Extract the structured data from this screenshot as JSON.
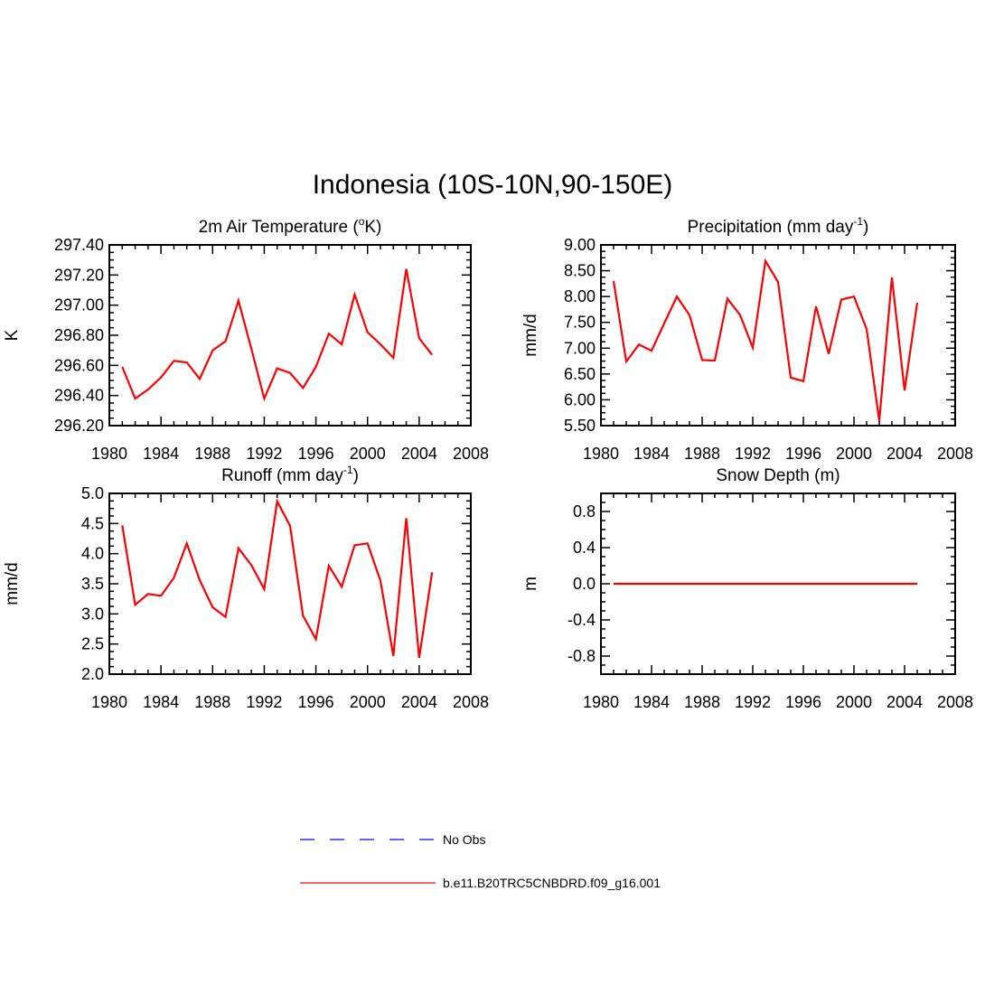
{
  "title": "Indonesia (10S-10N,90-150E)",
  "colors": {
    "model": "#ff0000",
    "obs": "#0000ff",
    "axis": "#000000"
  },
  "legend": [
    {
      "label": "No Obs",
      "style": "dashed",
      "color": "#0000ff"
    },
    {
      "label": "b.e11.B20TRC5CNBDRD.f09_g16.001",
      "style": "solid",
      "color": "#ff0000"
    }
  ],
  "chart_data": [
    {
      "type": "line",
      "title": "2m Air Temperature (",
      "title_sup": "o",
      "title_suffix": "K)",
      "xlabel": "",
      "ylabel": "K",
      "xlim": [
        1980,
        2008
      ],
      "ylim": [
        296.2,
        297.4
      ],
      "xticks": [
        "1980",
        "1984",
        "1988",
        "1992",
        "1996",
        "2000",
        "2004",
        "2008"
      ],
      "yticks": [
        "296.20",
        "296.40",
        "296.60",
        "296.80",
        "297.00",
        "297.20",
        "297.40"
      ],
      "ytick_values": [
        296.2,
        296.4,
        296.6,
        296.8,
        297.0,
        297.2,
        297.4
      ],
      "series": [
        {
          "name": "b.e11.B20TRC5CNBDRD.f09_g16.001",
          "x": [
            1981,
            1982,
            1983,
            1984,
            1985,
            1986,
            1987,
            1988,
            1989,
            1990,
            1991,
            1992,
            1993,
            1994,
            1995,
            1996,
            1997,
            1998,
            1999,
            2000,
            2001,
            2002,
            2003,
            2004,
            2005
          ],
          "values": [
            296.59,
            296.38,
            296.44,
            296.52,
            296.63,
            296.62,
            296.51,
            296.7,
            296.76,
            297.03,
            296.71,
            296.38,
            296.58,
            296.55,
            296.45,
            296.59,
            296.81,
            296.74,
            297.07,
            296.82,
            296.74,
            296.65,
            297.24,
            296.78,
            296.67
          ]
        }
      ]
    },
    {
      "type": "line",
      "title": "Precipitation (mm day",
      "title_sup": "-1",
      "title_suffix": ")",
      "xlabel": "",
      "ylabel": "mm/d",
      "xlim": [
        1980,
        2008
      ],
      "ylim": [
        5.5,
        9.0
      ],
      "xticks": [
        "1980",
        "1984",
        "1988",
        "1992",
        "1996",
        "2000",
        "2004",
        "2008"
      ],
      "yticks": [
        "5.50",
        "6.00",
        "6.50",
        "7.00",
        "7.50",
        "8.00",
        "8.50",
        "9.00"
      ],
      "ytick_values": [
        5.5,
        6.0,
        6.5,
        7.0,
        7.5,
        8.0,
        8.5,
        9.0
      ],
      "series": [
        {
          "name": "b.e11.B20TRC5CNBDRD.f09_g16.001",
          "x": [
            1981,
            1982,
            1983,
            1984,
            1985,
            1986,
            1987,
            1988,
            1989,
            1990,
            1991,
            1992,
            1993,
            1994,
            1995,
            1996,
            1997,
            1998,
            1999,
            2000,
            2001,
            2002,
            2003,
            2004,
            2005
          ],
          "values": [
            8.3,
            6.74,
            7.07,
            6.95,
            7.48,
            8.0,
            7.64,
            6.77,
            6.76,
            7.96,
            7.64,
            7.01,
            8.69,
            8.28,
            6.43,
            6.36,
            7.81,
            6.89,
            7.94,
            8.0,
            7.37,
            5.59,
            8.37,
            6.18,
            7.88
          ]
        }
      ]
    },
    {
      "type": "line",
      "title": "Runoff (mm day",
      "title_sup": "-1",
      "title_suffix": ")",
      "xlabel": "",
      "ylabel": "mm/d",
      "xlim": [
        1980,
        2008
      ],
      "ylim": [
        2.0,
        5.0
      ],
      "xticks": [
        "1980",
        "1984",
        "1988",
        "1992",
        "1996",
        "2000",
        "2004",
        "2008"
      ],
      "yticks": [
        "2.0",
        "2.5",
        "3.0",
        "3.5",
        "4.0",
        "4.5",
        "5.0"
      ],
      "ytick_values": [
        2.0,
        2.5,
        3.0,
        3.5,
        4.0,
        4.5,
        5.0
      ],
      "series": [
        {
          "name": "b.e11.B20TRC5CNBDRD.f09_g16.001",
          "x": [
            1981,
            1982,
            1983,
            1984,
            1985,
            1986,
            1987,
            1988,
            1989,
            1990,
            1991,
            1992,
            1993,
            1994,
            1995,
            1996,
            1997,
            1998,
            1999,
            2000,
            2001,
            2002,
            2003,
            2004,
            2005
          ],
          "values": [
            4.47,
            3.15,
            3.33,
            3.3,
            3.6,
            4.17,
            3.56,
            3.11,
            2.95,
            4.09,
            3.81,
            3.41,
            4.87,
            4.46,
            2.97,
            2.58,
            3.8,
            3.45,
            4.14,
            4.17,
            3.55,
            2.3,
            4.59,
            2.27,
            3.69
          ]
        }
      ]
    },
    {
      "type": "line",
      "title": "Snow Depth (m)",
      "title_sup": "",
      "title_suffix": "",
      "xlabel": "",
      "ylabel": "m",
      "xlim": [
        1980,
        2008
      ],
      "ylim": [
        -1.0,
        1.0
      ],
      "xticks": [
        "1980",
        "1984",
        "1988",
        "1992",
        "1996",
        "2000",
        "2004",
        "2008"
      ],
      "yticks": [
        "-0.8",
        "-0.4",
        "0.0",
        "0.4",
        "0.8"
      ],
      "ytick_values": [
        -0.8,
        -0.4,
        0.0,
        0.4,
        0.8
      ],
      "series": [
        {
          "name": "b.e11.B20TRC5CNBDRD.f09_g16.001",
          "x": [
            1981,
            1982,
            1983,
            1984,
            1985,
            1986,
            1987,
            1988,
            1989,
            1990,
            1991,
            1992,
            1993,
            1994,
            1995,
            1996,
            1997,
            1998,
            1999,
            2000,
            2001,
            2002,
            2003,
            2004,
            2005
          ],
          "values": [
            0,
            0,
            0,
            0,
            0,
            0,
            0,
            0,
            0,
            0,
            0,
            0,
            0,
            0,
            0,
            0,
            0,
            0,
            0,
            0,
            0,
            0,
            0,
            0,
            0
          ]
        }
      ]
    }
  ]
}
